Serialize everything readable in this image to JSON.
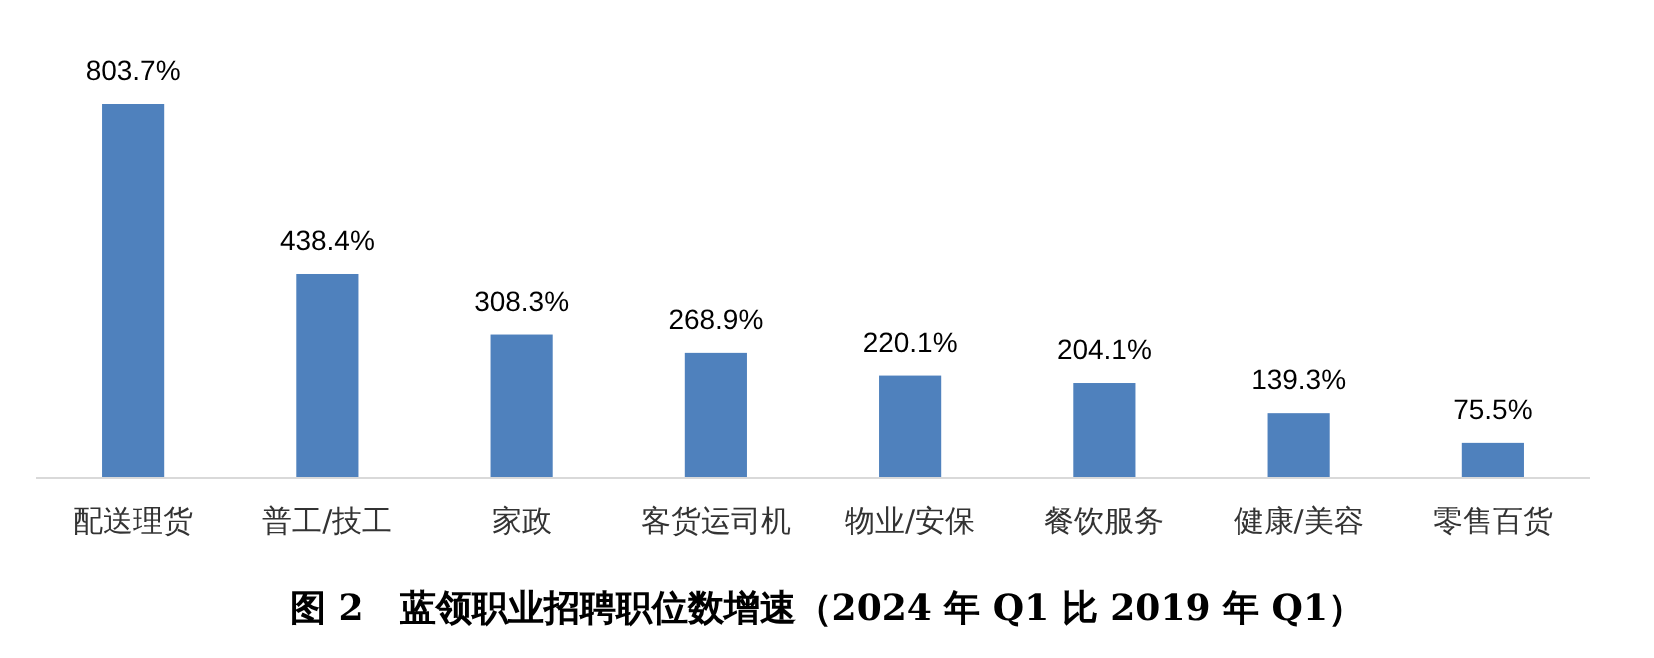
{
  "chart_data": {
    "type": "bar",
    "title": "图 2　蓝领职业招聘职位数增速（2024 年 Q1 比 2019 年 Q1）",
    "categories": [
      "配送理货",
      "普工/技工",
      "家政",
      "客货运司机",
      "物业/安保",
      "餐饮服务",
      "健康/美容",
      "零售百货"
    ],
    "values": [
      803.7,
      438.4,
      308.3,
      268.9,
      220.1,
      204.1,
      139.3,
      75.5
    ],
    "value_labels": [
      "803.7%",
      "438.4%",
      "308.3%",
      "268.9%",
      "220.1%",
      "204.1%",
      "139.3%",
      "75.5%"
    ],
    "color": "#4f81bd"
  }
}
